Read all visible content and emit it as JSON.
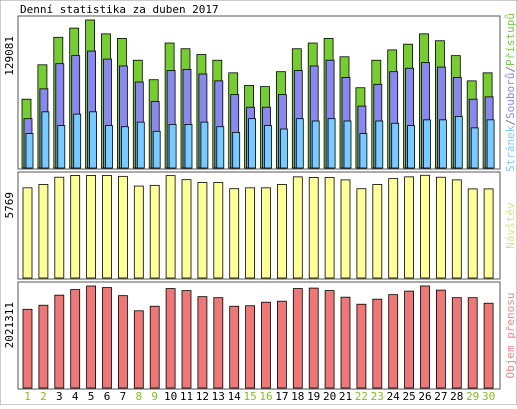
{
  "chart_data": [
    {
      "panel": "top",
      "type": "bar",
      "title": "Denní statistika za duben 2017",
      "ytick_label": "129081",
      "ylim": [
        0,
        129081
      ],
      "legend_placement": "right",
      "legend_parts": [
        {
          "text": "Stránek",
          "color": "#77CCFF"
        },
        {
          "text": "/",
          "color": "#777777"
        },
        {
          "text": "Souborů",
          "color": "#8888EE"
        },
        {
          "text": "/",
          "color": "#777777"
        },
        {
          "text": "Přístupů",
          "color": "#77CC44"
        }
      ],
      "categories": [
        "1",
        "2",
        "3",
        "4",
        "5",
        "6",
        "7",
        "8",
        "9",
        "10",
        "11",
        "12",
        "13",
        "14",
        "15",
        "16",
        "17",
        "18",
        "19",
        "20",
        "21",
        "22",
        "23",
        "24",
        "25",
        "26",
        "27",
        "28",
        "29",
        "30"
      ],
      "series": [
        {
          "name": "Přístupů",
          "color": "#77CC33",
          "values": [
            60000,
            90000,
            114000,
            122000,
            129081,
            117000,
            113000,
            94000,
            77000,
            109000,
            104000,
            99000,
            94000,
            83000,
            72000,
            71000,
            84000,
            104000,
            109000,
            113000,
            97000,
            70000,
            94000,
            103000,
            108000,
            117000,
            111000,
            98000,
            76000,
            83000
          ]
        },
        {
          "name": "Souborů",
          "color": "#8888EE",
          "values": [
            43000,
            69000,
            91000,
            98000,
            102000,
            95000,
            89000,
            75000,
            58000,
            85000,
            86000,
            82000,
            76000,
            64000,
            53000,
            53000,
            64000,
            85000,
            89000,
            94000,
            79000,
            54000,
            73000,
            84000,
            87000,
            92000,
            88000,
            79000,
            60000,
            62000
          ]
        },
        {
          "name": "Stránek",
          "color": "#77CCFF",
          "values": [
            30000,
            49000,
            37000,
            47000,
            49000,
            37000,
            36000,
            40000,
            32000,
            38000,
            38000,
            40000,
            36000,
            31000,
            43000,
            37000,
            34000,
            43000,
            41000,
            43000,
            41000,
            30000,
            41000,
            39000,
            37000,
            42000,
            42000,
            45000,
            35000,
            42000
          ]
        }
      ]
    },
    {
      "panel": "middle",
      "type": "bar",
      "ytick_label": "5769",
      "ylim": [
        0,
        5769
      ],
      "legend_placement": "right",
      "legend_parts": [
        {
          "text": "Návštěv",
          "color": "#DDDD88"
        }
      ],
      "categories": [
        "1",
        "2",
        "3",
        "4",
        "5",
        "6",
        "7",
        "8",
        "9",
        "10",
        "11",
        "12",
        "13",
        "14",
        "15",
        "16",
        "17",
        "18",
        "19",
        "20",
        "21",
        "22",
        "23",
        "24",
        "25",
        "26",
        "27",
        "28",
        "29",
        "30"
      ],
      "series": [
        {
          "name": "Návštěv",
          "color": "#FFFF99",
          "values": [
            5100,
            5290,
            5700,
            5800,
            5800,
            5800,
            5750,
            5200,
            5240,
            5790,
            5560,
            5400,
            5400,
            5050,
            5100,
            5100,
            5290,
            5720,
            5690,
            5690,
            5550,
            5050,
            5290,
            5620,
            5720,
            5810,
            5700,
            5550,
            5040,
            5040
          ]
        }
      ]
    },
    {
      "panel": "bottom",
      "type": "bar",
      "ytick_label": "2021311",
      "ylim": [
        0,
        2021311
      ],
      "legend_placement": "right",
      "legend_parts": [
        {
          "text": "Objem přenosu",
          "color": "#EE8888"
        }
      ],
      "categories": [
        "1",
        "2",
        "3",
        "4",
        "5",
        "6",
        "7",
        "8",
        "9",
        "10",
        "11",
        "12",
        "13",
        "14",
        "15",
        "16",
        "17",
        "18",
        "19",
        "20",
        "21",
        "22",
        "23",
        "24",
        "25",
        "26",
        "27",
        "28",
        "29",
        "30"
      ],
      "series": [
        {
          "name": "Objem přenosu",
          "color": "#EE7777",
          "values": [
            1560000,
            1640000,
            1840000,
            1950000,
            2021311,
            1990000,
            1830000,
            1530000,
            1620000,
            1970000,
            1930000,
            1810000,
            1790000,
            1620000,
            1630000,
            1700000,
            1720000,
            1970000,
            1980000,
            1930000,
            1800000,
            1660000,
            1760000,
            1850000,
            1920000,
            2021311,
            1940000,
            1790000,
            1790000,
            1680000
          ]
        }
      ]
    }
  ],
  "weekend_days": [
    "1",
    "2",
    "8",
    "9",
    "15",
    "16",
    "22",
    "23",
    "29",
    "30"
  ],
  "colors": {
    "weekend_label": "#88BB22",
    "weekday_label": "#000000",
    "frame": "#555555"
  }
}
